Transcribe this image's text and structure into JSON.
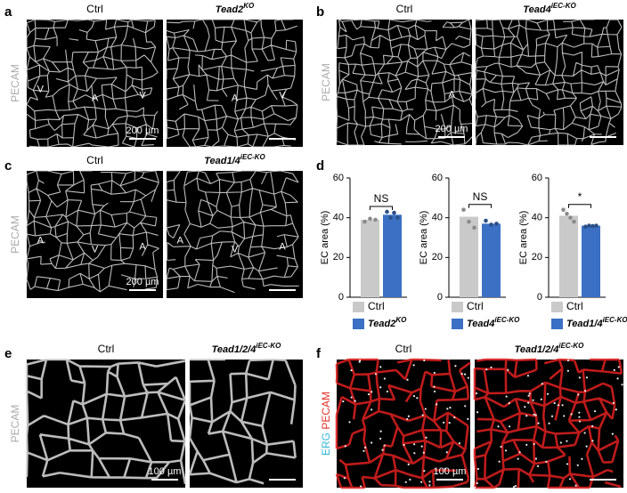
{
  "panels": [
    {
      "label": "a",
      "ylabel": "PECAM",
      "images": [
        {
          "title": "Ctrl",
          "annotations": [
            "V",
            "A",
            "V"
          ],
          "scale": "200 µm"
        },
        {
          "title": "Tead2",
          "title_sup": "KO",
          "annotations": [
            "A",
            "V"
          ]
        }
      ]
    },
    {
      "label": "b",
      "ylabel": "PECAM",
      "images": [
        {
          "title": "Ctrl",
          "annotations": [
            "A"
          ],
          "scale": "200 µm"
        },
        {
          "title": "Tead4",
          "title_sup": "iEC-KO",
          "annotations": []
        }
      ]
    },
    {
      "label": "c",
      "ylabel": "PECAM",
      "images": [
        {
          "title": "Ctrl",
          "annotations": [
            "A",
            "V",
            "A"
          ],
          "scale": "200 µm"
        },
        {
          "title": "Tead1/4",
          "title_sup": "iEC-KO",
          "annotations": [
            "A",
            "V",
            "A"
          ]
        }
      ]
    },
    {
      "label": "e",
      "ylabel": "PECAM",
      "images": [
        {
          "title": "Ctrl",
          "annotations": [],
          "scale": "100 µm"
        },
        {
          "title": "Tead1/2/4",
          "title_sup": "iEC-KO",
          "annotations": []
        }
      ]
    },
    {
      "label": "f",
      "ylabel_parts": [
        "ERG",
        "PECAM"
      ],
      "images": [
        {
          "title": "Ctrl",
          "annotations": [],
          "scale": "100 µm"
        },
        {
          "title": "Tead1/2/4",
          "title_sup": "iEC-KO",
          "annotations": []
        }
      ]
    }
  ],
  "chart_label": "d",
  "chart_data": [
    {
      "type": "bar",
      "ylabel": "EC area (%)",
      "ylim": [
        0,
        60
      ],
      "yticks": [
        0,
        20,
        40,
        60
      ],
      "significance": "NS",
      "series": [
        {
          "name": "Ctrl",
          "color": "#c9c9c9",
          "point_color": "#8a8a8a",
          "values": [
            39
          ],
          "points": [
            38,
            39.5,
            39
          ]
        },
        {
          "name": "Tead2",
          "name_sup": "KO",
          "color": "#3b70c4",
          "point_color": "#2b4f86",
          "values": [
            41.5
          ],
          "points": [
            43,
            40,
            42.5,
            40
          ]
        }
      ]
    },
    {
      "type": "bar",
      "ylabel": "EC area (%)",
      "ylim": [
        0,
        60
      ],
      "yticks": [
        0,
        20,
        40,
        60
      ],
      "significance": "NS",
      "series": [
        {
          "name": "Ctrl",
          "color": "#c9c9c9",
          "point_color": "#8a8a8a",
          "values": [
            40.5
          ],
          "points": [
            44,
            38,
            35
          ]
        },
        {
          "name": "Tead4",
          "name_sup": "iEC-KO",
          "color": "#3b70c4",
          "point_color": "#2b4f86",
          "values": [
            37
          ],
          "points": [
            38.5,
            36.5,
            37
          ]
        }
      ]
    },
    {
      "type": "bar",
      "ylabel": "EC area (%)",
      "ylim": [
        0,
        60
      ],
      "yticks": [
        0,
        20,
        40,
        60
      ],
      "significance": "*",
      "series": [
        {
          "name": "Ctrl",
          "color": "#c9c9c9",
          "point_color": "#8a8a8a",
          "values": [
            41
          ],
          "points": [
            44,
            42,
            40,
            38
          ]
        },
        {
          "name": "Tead1/4",
          "name_sup": "iEC-KO",
          "color": "#3b70c4",
          "point_color": "#2b4f86",
          "values": [
            36
          ],
          "points": [
            35.5,
            36,
            35.8,
            36
          ]
        }
      ]
    }
  ]
}
